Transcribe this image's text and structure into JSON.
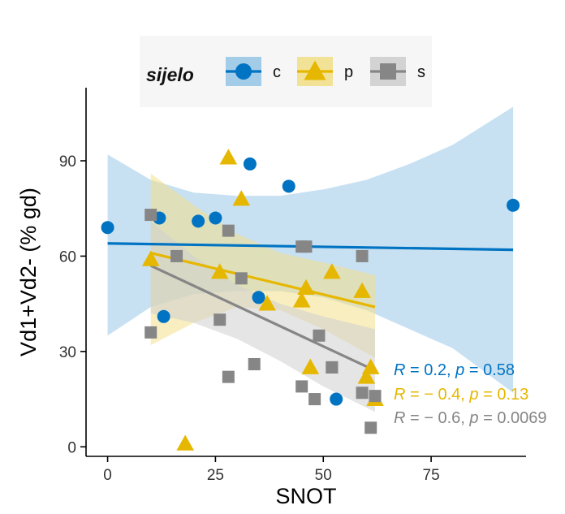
{
  "chart_data": {
    "type": "scatter",
    "xlabel": "SNOT",
    "ylabel": "Vd1+Vd2- (% gd)",
    "xlim": [
      -5,
      97
    ],
    "ylim": [
      -3,
      113
    ],
    "x_ticks": [
      0,
      25,
      50,
      75
    ],
    "y_ticks": [
      0,
      30,
      60,
      90
    ],
    "grid": false,
    "legend": {
      "title": "sijelo",
      "placement": "top",
      "entries": [
        "c",
        "p",
        "s"
      ]
    },
    "series": [
      {
        "name": "c",
        "color": "#0073C2",
        "fill_color": "#9AC8E8",
        "marker": "circle",
        "x": [
          0,
          12,
          13,
          21,
          25,
          33,
          35,
          42,
          53,
          94
        ],
        "y": [
          69,
          72,
          41,
          71,
          72,
          89,
          47,
          82,
          15,
          76
        ],
        "fit": {
          "x": [
            0,
            94
          ],
          "y": [
            64,
            62
          ]
        },
        "band": {
          "x": [
            0,
            10,
            20,
            30,
            40,
            50,
            60,
            70,
            80,
            94
          ],
          "upper": [
            92,
            84,
            80,
            79,
            79,
            81,
            84,
            89,
            95,
            107
          ],
          "lower": [
            35,
            44,
            48,
            49,
            49,
            47,
            43,
            37,
            31,
            17
          ]
        },
        "annotation": {
          "r": "0.2",
          "p": "0.58"
        }
      },
      {
        "name": "p",
        "color": "#E6B700",
        "fill_color": "#F2E08C",
        "marker": "triangle",
        "x": [
          10,
          18,
          26,
          28,
          31,
          37,
          45,
          46,
          47,
          52,
          59,
          60,
          61,
          62
        ],
        "y": [
          59,
          1,
          55,
          91,
          78,
          45,
          46,
          50,
          25,
          55,
          49,
          22,
          25,
          15
        ],
        "fit": {
          "x": [
            10,
            62
          ],
          "y": [
            61,
            44
          ]
        },
        "band": {
          "x": [
            10,
            20,
            30,
            40,
            50,
            62
          ],
          "upper": [
            86,
            76,
            67,
            61,
            58,
            54
          ],
          "lower": [
            32,
            39,
            44,
            43,
            37,
            28
          ]
        },
        "annotation": {
          "r": "− 0.4",
          "p": "0.13"
        }
      },
      {
        "name": "s",
        "color": "#868686",
        "fill_color": "#CFCFCF",
        "marker": "square",
        "x": [
          10,
          10,
          16,
          26,
          28,
          28,
          31,
          34,
          45,
          45,
          46,
          48,
          49,
          52,
          52,
          59,
          59,
          61,
          62
        ],
        "y": [
          73,
          36,
          60,
          40,
          68,
          22,
          53,
          26,
          63,
          19,
          63,
          15,
          35,
          25,
          25,
          60,
          17,
          6,
          16
        ],
        "fit": {
          "x": [
            10,
            62
          ],
          "y": [
            57,
            24
          ]
        },
        "band": {
          "x": [
            10,
            20,
            30,
            40,
            50,
            62
          ],
          "upper": [
            71,
            60,
            51,
            45,
            41,
            37
          ],
          "lower": [
            42,
            39,
            34,
            27,
            19,
            11
          ]
        },
        "annotation": {
          "r": "− 0.6",
          "p": "0.0069"
        }
      }
    ]
  }
}
